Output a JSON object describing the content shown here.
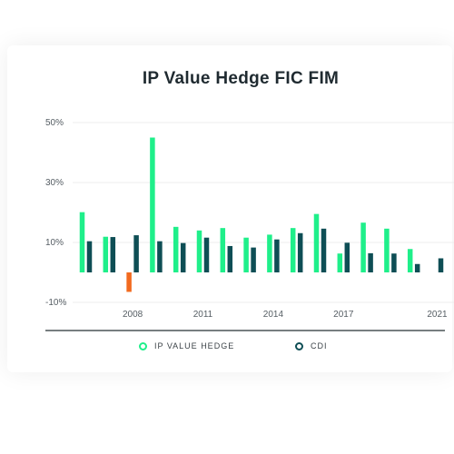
{
  "title": "IP Value Hedge FIC FIM",
  "colors": {
    "hedge": "#1fef8a",
    "cdi": "#0e4e55",
    "negative": "#f26a1f",
    "axis": "#4a5357",
    "grid": "#ececec"
  },
  "legend": {
    "hedge_label": "IP VALUE HEDGE",
    "cdi_label": "CDI"
  },
  "chart_data": {
    "type": "bar",
    "title": "IP Value Hedge FIC FIM",
    "xlabel": "",
    "ylabel": "",
    "ylim": [
      -10,
      50
    ],
    "y_ticks": [
      50,
      30,
      10,
      -10
    ],
    "y_tick_labels": [
      "50%",
      "30%",
      "10%",
      "-10%"
    ],
    "grid": true,
    "categories": [
      "2006",
      "2007",
      "2008",
      "2009",
      "2010",
      "2011",
      "2012",
      "2013",
      "2014",
      "2015",
      "2016",
      "2017",
      "2018",
      "2019",
      "2020",
      "2021"
    ],
    "x_tick_labels": [
      "2008",
      "2011",
      "2014",
      "2017",
      "2021"
    ],
    "x_tick_categories": [
      "2008",
      "2011",
      "2014",
      "2017",
      "2021"
    ],
    "series": [
      {
        "name": "IP VALUE HEDGE",
        "values": [
          20.1,
          11.9,
          -6.5,
          45.0,
          15.2,
          14.0,
          14.8,
          11.6,
          12.6,
          14.8,
          19.5,
          6.3,
          16.6,
          14.6,
          7.8,
          null
        ]
      },
      {
        "name": "CDI",
        "values": [
          10.4,
          11.8,
          12.4,
          10.4,
          9.8,
          11.6,
          8.8,
          8.3,
          11.0,
          13.1,
          14.6,
          9.9,
          6.4,
          6.3,
          2.8,
          4.7
        ]
      }
    ],
    "legend_position": "bottom"
  }
}
